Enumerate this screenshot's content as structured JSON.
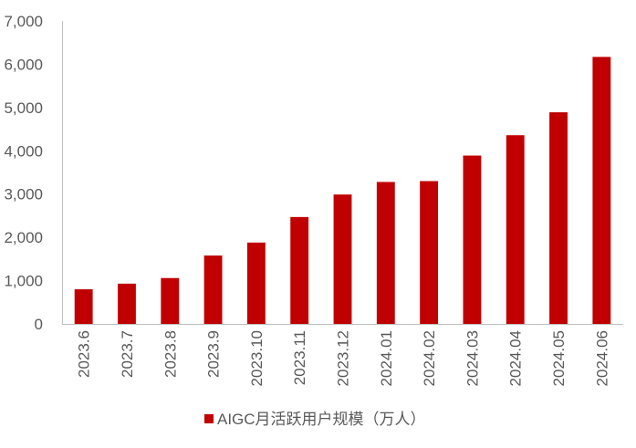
{
  "chart_data": {
    "type": "bar",
    "categories": [
      "2023.6",
      "2023.7",
      "2023.8",
      "2023.9",
      "2023.10",
      "2023.11",
      "2023.12",
      "2024.01",
      "2024.02",
      "2024.03",
      "2024.04",
      "2024.05",
      "2024.06"
    ],
    "series": [
      {
        "name": "AIGC月活跃用户规模（万人）",
        "values": [
          800,
          930,
          1060,
          1580,
          1880,
          2470,
          2990,
          3280,
          3300,
          3890,
          4360,
          4890,
          6170
        ],
        "color": "#C00000"
      }
    ],
    "ylim": [
      0,
      7000
    ],
    "yticks": [
      0,
      1000,
      2000,
      3000,
      4000,
      5000,
      6000,
      7000
    ],
    "ytick_labels": [
      "0",
      "1,000",
      "2,000",
      "3,000",
      "4,000",
      "5,000",
      "6,000",
      "7,000"
    ],
    "grid": false,
    "legend": "bottom",
    "legend_label": "AIGC月活跃用户规模（万人）"
  }
}
